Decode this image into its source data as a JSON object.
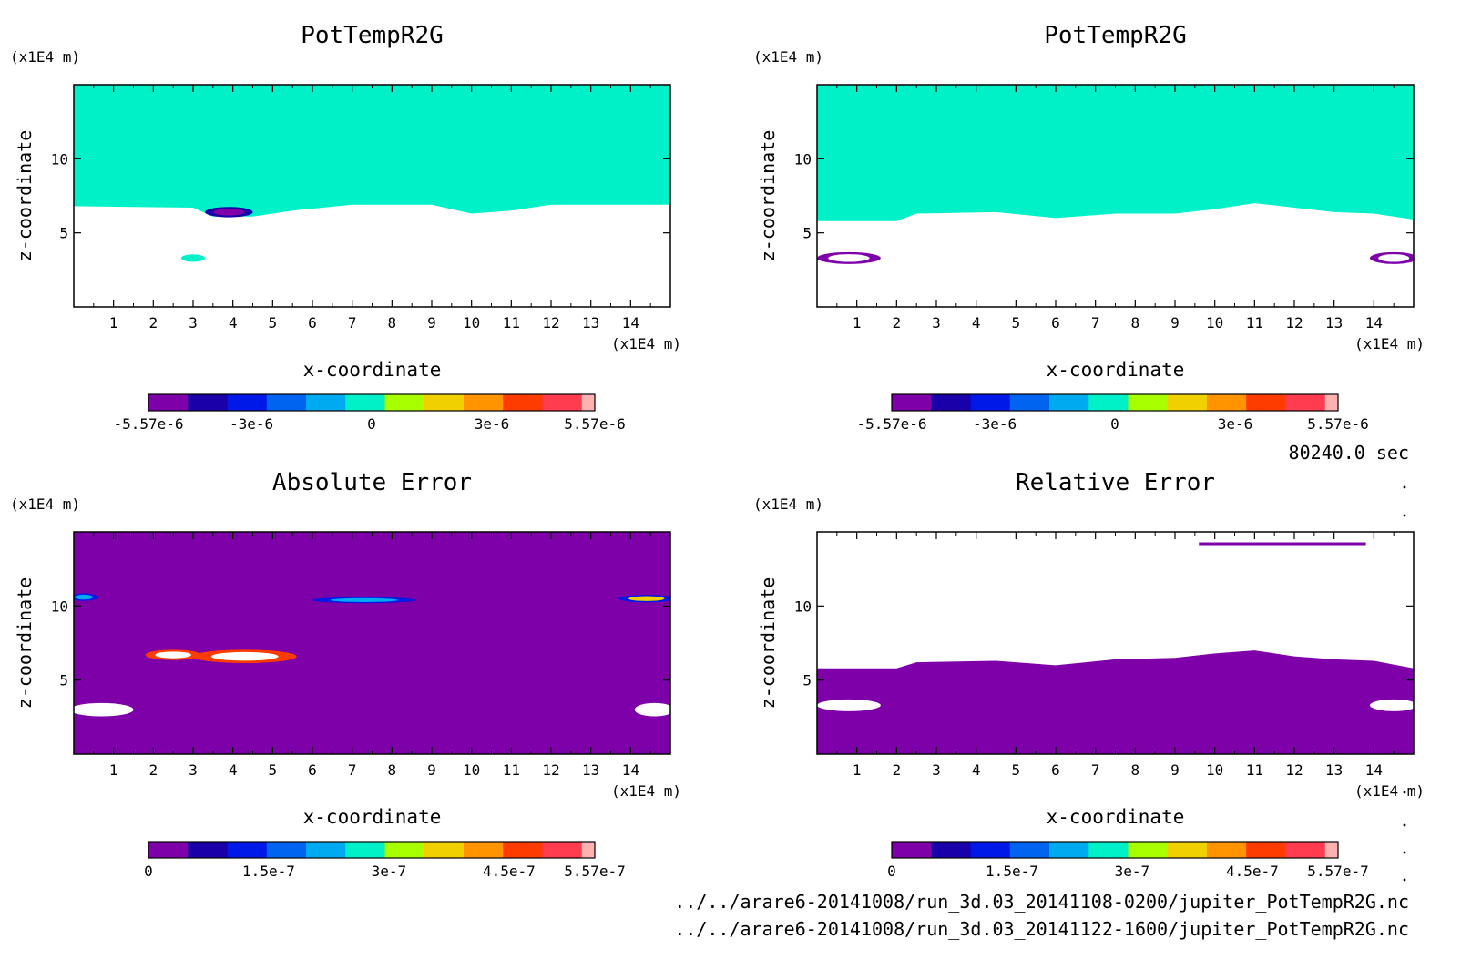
{
  "figure": {
    "time_label": "80240.0 sec",
    "files": [
      "../../arare6-20141008/run_3d.03_20141108-0200/jupiter_PotTempR2G.nc",
      "../../arare6-20141008/run_3d.03_20141122-1600/jupiter_PotTempR2G.nc"
    ]
  },
  "palette": [
    "#7e00a8",
    "#1a00a8",
    "#0018e8",
    "#0064f0",
    "#00aaf0",
    "#00f0c8",
    "#a8ff00",
    "#f0d000",
    "#ff9400",
    "#ff3c00",
    "#ff3c50",
    "#ffb0b0"
  ],
  "chart_data": [
    {
      "type": "heatmap",
      "title": "PotTempR2G",
      "xlabel": "x-coordinate",
      "ylabel": "z-coordinate",
      "x_unit": "(x1E4 m)",
      "y_unit": "(x1E4 m)",
      "xlim": [
        0,
        15
      ],
      "ylim": [
        0,
        15
      ],
      "x_ticks": [
        "1",
        "2",
        "3",
        "4",
        "5",
        "6",
        "7",
        "8",
        "9",
        "10",
        "11",
        "12",
        "13",
        "14"
      ],
      "y_ticks": [
        "5",
        "10"
      ],
      "colorbar": {
        "range": [
          -5.57e-06,
          5.57e-06
        ],
        "tick_labels": [
          "-5.57e-6",
          "-3e-6",
          "0",
          "3e-6",
          "5.57e-6"
        ],
        "tick_values": [
          -5.57e-06,
          -3e-06,
          0,
          3e-06,
          5.57e-06
        ]
      },
      "fields": [
        {
          "level": 0,
          "region": "upper",
          "x_range": [
            0,
            15
          ],
          "z_above_profile": [
            [
              0,
              6.8
            ],
            [
              3,
              6.7
            ],
            [
              3.5,
              6.1
            ],
            [
              4.5,
              6.1
            ],
            [
              5.5,
              6.5
            ],
            [
              7,
              6.9
            ],
            [
              9,
              6.9
            ],
            [
              10,
              6.3
            ],
            [
              11,
              6.5
            ],
            [
              12,
              6.9
            ],
            [
              15,
              6.9
            ]
          ]
        },
        {
          "level": 1,
          "region": "lower"
        }
      ],
      "features": [
        {
          "kind": "blob",
          "x": 3.9,
          "z": 6.4,
          "rx": 0.6,
          "rz": 0.35,
          "levels": [
            -4e-06,
            -5e-06
          ]
        },
        {
          "kind": "blob",
          "x": 3.0,
          "z": 3.3,
          "rx": 0.3,
          "rz": 0.25,
          "levels": [
            0
          ]
        }
      ]
    },
    {
      "type": "heatmap",
      "title": "PotTempR2G",
      "xlabel": "x-coordinate",
      "ylabel": "z-coordinate",
      "x_unit": "(x1E4 m)",
      "y_unit": "(x1E4 m)",
      "xlim": [
        0,
        15
      ],
      "ylim": [
        0,
        15
      ],
      "x_ticks": [
        "1",
        "2",
        "3",
        "4",
        "5",
        "6",
        "7",
        "8",
        "9",
        "10",
        "11",
        "12",
        "13",
        "14"
      ],
      "y_ticks": [
        "5",
        "10"
      ],
      "colorbar": {
        "range": [
          -5.57e-06,
          5.57e-06
        ],
        "tick_labels": [
          "-5.57e-6",
          "-3e-6",
          "0",
          "3e-6",
          "5.57e-6"
        ],
        "tick_values": [
          -5.57e-06,
          -3e-06,
          0,
          3e-06,
          5.57e-06
        ]
      },
      "fields": [
        {
          "level": 0,
          "region": "upper",
          "x_range": [
            0,
            15
          ],
          "z_above_profile": [
            [
              0,
              5.8
            ],
            [
              2,
              5.8
            ],
            [
              2.5,
              6.3
            ],
            [
              4.5,
              6.4
            ],
            [
              6,
              6.0
            ],
            [
              7.5,
              6.3
            ],
            [
              9,
              6.3
            ],
            [
              10,
              6.6
            ],
            [
              11,
              7.0
            ],
            [
              12,
              6.7
            ],
            [
              13,
              6.4
            ],
            [
              14,
              6.3
            ],
            [
              15,
              5.9
            ]
          ]
        },
        {
          "level": 1,
          "region": "lower"
        }
      ],
      "features": [
        {
          "kind": "blob",
          "x": 0.8,
          "z": 3.3,
          "rx": 0.8,
          "rz": 0.4,
          "levels": [
            -5.57e-06,
            5.57e-06
          ]
        },
        {
          "kind": "blob",
          "x": 14.5,
          "z": 3.3,
          "rx": 0.6,
          "rz": 0.4,
          "levels": [
            -5.57e-06,
            5.57e-06
          ]
        }
      ]
    },
    {
      "type": "heatmap",
      "title": "Absolute Error",
      "xlabel": "x-coordinate",
      "ylabel": "z-coordinate",
      "x_unit": "(x1E4 m)",
      "y_unit": "(x1E4 m)",
      "xlim": [
        0,
        15
      ],
      "ylim": [
        0,
        15
      ],
      "x_ticks": [
        "1",
        "2",
        "3",
        "4",
        "5",
        "6",
        "7",
        "8",
        "9",
        "10",
        "11",
        "12",
        "13",
        "14"
      ],
      "y_ticks": [
        "5",
        "10"
      ],
      "colorbar": {
        "range": [
          0,
          5.57e-07
        ],
        "tick_labels": [
          "0",
          "1.5e-7",
          "3e-7",
          "4.5e-7",
          "5.57e-7"
        ],
        "tick_values": [
          0,
          1.5e-07,
          3e-07,
          4.5e-07,
          5.57e-07
        ]
      },
      "fields": [
        {
          "level": 0,
          "region": "all"
        }
      ],
      "features": [
        {
          "kind": "blob",
          "x": 2.5,
          "z": 6.7,
          "rx": 0.7,
          "rz": 0.35,
          "levels": [
            5e-07,
            5.57e-07
          ]
        },
        {
          "kind": "blob",
          "x": 4.3,
          "z": 6.6,
          "rx": 1.3,
          "rz": 0.45,
          "levels": [
            5e-07,
            5.57e-07
          ]
        },
        {
          "kind": "blob",
          "x": 7.3,
          "z": 10.4,
          "rx": 1.3,
          "rz": 0.2,
          "levels": [
            1.5e-07,
            2.5e-07
          ]
        },
        {
          "kind": "blob",
          "x": 0.25,
          "z": 10.6,
          "rx": 0.35,
          "rz": 0.25,
          "levels": [
            1.5e-07,
            2.5e-07
          ]
        },
        {
          "kind": "blob",
          "x": 14.4,
          "z": 10.5,
          "rx": 0.7,
          "rz": 0.25,
          "levels": [
            1.5e-07,
            4e-07
          ]
        },
        {
          "kind": "blob",
          "x": 0.7,
          "z": 3.0,
          "rx": 0.8,
          "rz": 0.45,
          "levels": [
            5.57e-07
          ]
        },
        {
          "kind": "blob",
          "x": 14.6,
          "z": 3.0,
          "rx": 0.5,
          "rz": 0.45,
          "levels": [
            5.57e-07
          ]
        }
      ]
    },
    {
      "type": "heatmap",
      "title": "Relative Error",
      "xlabel": "x-coordinate",
      "ylabel": "z-coordinate",
      "x_unit": "(x1E4 m)",
      "y_unit": "(x1E4 m)",
      "xlim": [
        0,
        15
      ],
      "ylim": [
        0,
        15
      ],
      "x_ticks": [
        "1",
        "2",
        "3",
        "4",
        "5",
        "6",
        "7",
        "8",
        "9",
        "10",
        "11",
        "12",
        "13",
        "14"
      ],
      "y_ticks": [
        "5",
        "10"
      ],
      "colorbar": {
        "range": [
          0,
          5.57e-07
        ],
        "tick_labels": [
          "0",
          "1.5e-7",
          "3e-7",
          "4.5e-7",
          "5.57e-7"
        ],
        "tick_values": [
          0,
          1.5e-07,
          3e-07,
          4.5e-07,
          5.57e-07
        ]
      },
      "fields": [
        {
          "level": "above-max",
          "region": "upper",
          "x_range": [
            0,
            15
          ],
          "z_above_profile": [
            [
              0,
              5.8
            ],
            [
              2,
              5.8
            ],
            [
              2.5,
              6.2
            ],
            [
              4.5,
              6.3
            ],
            [
              6,
              6.0
            ],
            [
              7.5,
              6.4
            ],
            [
              9,
              6.5
            ],
            [
              10,
              6.8
            ],
            [
              11,
              7.0
            ],
            [
              12,
              6.6
            ],
            [
              13,
              6.4
            ],
            [
              14,
              6.3
            ],
            [
              15,
              5.8
            ]
          ]
        },
        {
          "level": 0,
          "region": "lower"
        }
      ],
      "features": [
        {
          "kind": "blob",
          "x": 0.8,
          "z": 3.3,
          "rx": 0.8,
          "rz": 0.4,
          "levels": [
            "above-max"
          ]
        },
        {
          "kind": "blob",
          "x": 14.5,
          "z": 3.3,
          "rx": 0.6,
          "rz": 0.4,
          "levels": [
            "above-max"
          ]
        },
        {
          "kind": "band",
          "x": [
            9.6,
            13.8
          ],
          "z": 14.2,
          "levels": [
            0
          ]
        }
      ]
    }
  ]
}
